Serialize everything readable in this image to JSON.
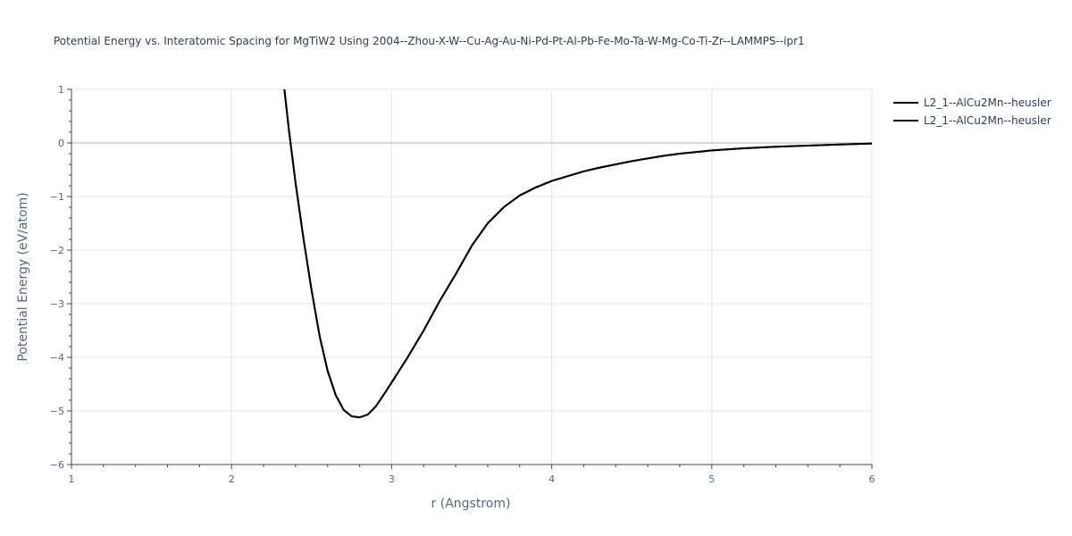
{
  "chart_data": {
    "type": "line",
    "title": "Potential Energy vs. Interatomic Spacing for MgTiW2 Using 2004--Zhou-X-W--Cu-Ag-Au-Ni-Pd-Pt-Al-Pb-Fe-Mo-Ta-W-Mg-Co-Ti-Zr--LAMMPS--ipr1",
    "xlabel": "r (Angstrom)",
    "ylabel": "Potential Energy (eV/atom)",
    "xlim": [
      1,
      6
    ],
    "ylim": [
      -6,
      1
    ],
    "x_ticks": [
      1,
      2,
      3,
      4,
      5,
      6
    ],
    "y_ticks": [
      1,
      0,
      -1,
      -2,
      -3,
      -4,
      -5,
      -6
    ],
    "x_tick_labels": [
      "1",
      "2",
      "3",
      "4",
      "5",
      "6"
    ],
    "y_tick_labels": [
      "1",
      "0",
      "−1",
      "−2",
      "−3",
      "−4",
      "−5",
      "−6"
    ],
    "grid": true,
    "legend_position": "top-right",
    "series": [
      {
        "name": "L2_1--AlCu2Mn--heusler",
        "color": "#000000",
        "x": [
          2.33,
          2.36,
          2.4,
          2.45,
          2.5,
          2.55,
          2.6,
          2.65,
          2.7,
          2.75,
          2.8,
          2.85,
          2.9,
          2.95,
          3.0,
          3.1,
          3.2,
          3.3,
          3.4,
          3.5,
          3.6,
          3.7,
          3.8,
          3.9,
          4.0,
          4.1,
          4.2,
          4.3,
          4.4,
          4.5,
          4.6,
          4.7,
          4.8,
          4.9,
          5.0,
          5.2,
          5.4,
          5.6,
          5.8,
          6.0
        ],
        "y": [
          1.0,
          0.2,
          -0.75,
          -1.8,
          -2.75,
          -3.6,
          -4.25,
          -4.7,
          -4.98,
          -5.1,
          -5.12,
          -5.07,
          -4.92,
          -4.7,
          -4.47,
          -4.0,
          -3.5,
          -2.95,
          -2.45,
          -1.92,
          -1.5,
          -1.2,
          -0.98,
          -0.83,
          -0.71,
          -0.62,
          -0.53,
          -0.46,
          -0.4,
          -0.34,
          -0.29,
          -0.24,
          -0.2,
          -0.17,
          -0.14,
          -0.1,
          -0.07,
          -0.05,
          -0.03,
          -0.01
        ]
      },
      {
        "name": "L2_1--AlCu2Mn--heusler",
        "color": "#000000",
        "x": [
          2.33,
          2.36,
          2.4,
          2.45,
          2.5,
          2.55,
          2.6,
          2.65,
          2.7,
          2.75,
          2.8,
          2.85,
          2.9,
          2.95,
          3.0,
          3.1,
          3.2,
          3.3,
          3.4,
          3.5,
          3.6,
          3.7,
          3.8,
          3.9,
          4.0,
          4.1,
          4.2,
          4.3,
          4.4,
          4.5,
          4.6,
          4.7,
          4.8,
          4.9,
          5.0,
          5.2,
          5.4,
          5.6,
          5.8,
          6.0
        ],
        "y": [
          1.0,
          0.2,
          -0.75,
          -1.8,
          -2.75,
          -3.6,
          -4.25,
          -4.7,
          -4.98,
          -5.1,
          -5.12,
          -5.07,
          -4.92,
          -4.7,
          -4.47,
          -4.0,
          -3.5,
          -2.95,
          -2.45,
          -1.92,
          -1.5,
          -1.2,
          -0.98,
          -0.83,
          -0.71,
          -0.62,
          -0.53,
          -0.46,
          -0.4,
          -0.34,
          -0.29,
          -0.24,
          -0.2,
          -0.17,
          -0.14,
          -0.1,
          -0.07,
          -0.05,
          -0.03,
          -0.01
        ]
      }
    ]
  }
}
